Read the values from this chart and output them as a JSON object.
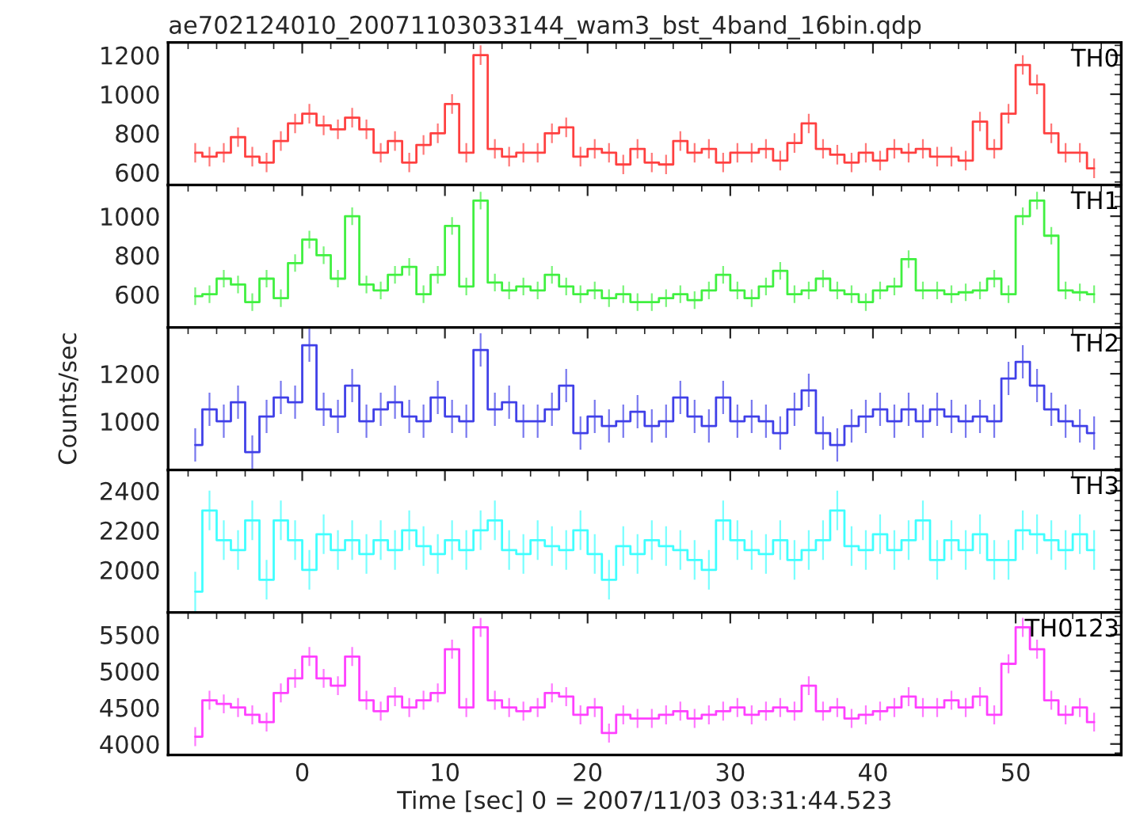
{
  "chart_data": [
    {
      "type": "step",
      "title": "ae702124010_20071103033144_wam3_bst_4band_16bin.qdp",
      "annotations": [
        "TH0"
      ],
      "tick_labels": "y",
      "grid": false,
      "xlim": [
        -9.4,
        57.4
      ],
      "xticks": [
        0,
        10,
        20,
        30,
        40,
        50
      ],
      "ylim": [
        535,
        1265
      ],
      "yticks": [
        600,
        800,
        1000,
        1200
      ],
      "x": [
        -7.5,
        -6.5,
        -5.5,
        -4.5,
        -3.5,
        -2.5,
        -1.5,
        -0.5,
        0.5,
        1.5,
        2.5,
        3.5,
        4.5,
        5.5,
        6.5,
        7.5,
        8.5,
        9.5,
        10.5,
        11.5,
        12.5,
        13.5,
        14.5,
        15.5,
        16.5,
        17.5,
        18.5,
        19.5,
        20.5,
        21.5,
        22.5,
        23.5,
        24.5,
        25.5,
        26.5,
        27.5,
        28.5,
        29.5,
        30.5,
        31.5,
        32.5,
        33.5,
        34.5,
        35.5,
        36.5,
        37.5,
        38.5,
        39.5,
        40.5,
        41.5,
        42.5,
        43.5,
        44.5,
        45.5,
        46.5,
        47.5,
        48.5,
        49.5,
        50.5,
        51.5,
        52.5,
        53.5,
        54.5,
        55.5
      ],
      "series": [
        {
          "color": "#ff4040",
          "values": [
            700,
            680,
            700,
            780,
            680,
            650,
            760,
            850,
            900,
            840,
            820,
            880,
            820,
            700,
            760,
            650,
            740,
            800,
            950,
            700,
            1200,
            720,
            680,
            700,
            700,
            800,
            830,
            680,
            720,
            700,
            640,
            720,
            650,
            640,
            760,
            700,
            720,
            650,
            700,
            700,
            720,
            660,
            750,
            850,
            720,
            690,
            650,
            700,
            660,
            720,
            700,
            720,
            680,
            680,
            660,
            860,
            720,
            900,
            1150,
            1050,
            800,
            700,
            700,
            620
          ],
          "errors": [
            50,
            50,
            50,
            50,
            50,
            50,
            50,
            50,
            50,
            50,
            50,
            50,
            50,
            50,
            50,
            50,
            50,
            50,
            50,
            50,
            50,
            50,
            50,
            50,
            50,
            50,
            50,
            50,
            50,
            50,
            50,
            50,
            50,
            50,
            50,
            50,
            50,
            50,
            50,
            50,
            50,
            50,
            50,
            50,
            50,
            50,
            50,
            50,
            50,
            50,
            50,
            50,
            50,
            50,
            50,
            50,
            50,
            50,
            50,
            50,
            50,
            50,
            50,
            50
          ]
        }
      ]
    },
    {
      "type": "step",
      "annotations": [
        "TH1"
      ],
      "tick_labels": "y",
      "grid": false,
      "xlim": [
        -9.4,
        57.4
      ],
      "xticks": [
        0,
        10,
        20,
        30,
        40,
        50
      ],
      "ylim": [
        430,
        1160
      ],
      "yticks": [
        600,
        800,
        1000
      ],
      "x": [
        -7.5,
        -6.5,
        -5.5,
        -4.5,
        -3.5,
        -2.5,
        -1.5,
        -0.5,
        0.5,
        1.5,
        2.5,
        3.5,
        4.5,
        5.5,
        6.5,
        7.5,
        8.5,
        9.5,
        10.5,
        11.5,
        12.5,
        13.5,
        14.5,
        15.5,
        16.5,
        17.5,
        18.5,
        19.5,
        20.5,
        21.5,
        22.5,
        23.5,
        24.5,
        25.5,
        26.5,
        27.5,
        28.5,
        29.5,
        30.5,
        31.5,
        32.5,
        33.5,
        34.5,
        35.5,
        36.5,
        37.5,
        38.5,
        39.5,
        40.5,
        41.5,
        42.5,
        43.5,
        44.5,
        45.5,
        46.5,
        47.5,
        48.5,
        49.5,
        50.5,
        51.5,
        52.5,
        53.5,
        54.5,
        55.5
      ],
      "series": [
        {
          "color": "#40f040",
          "values": [
            590,
            600,
            680,
            650,
            560,
            680,
            580,
            760,
            880,
            800,
            680,
            1000,
            650,
            620,
            700,
            740,
            600,
            700,
            950,
            640,
            1080,
            660,
            620,
            640,
            620,
            700,
            640,
            600,
            620,
            580,
            600,
            560,
            560,
            580,
            600,
            570,
            620,
            700,
            620,
            580,
            640,
            720,
            600,
            620,
            680,
            620,
            600,
            560,
            620,
            640,
            780,
            620,
            620,
            600,
            610,
            620,
            680,
            600,
            1000,
            1080,
            900,
            620,
            610,
            600
          ],
          "errors": [
            45,
            45,
            45,
            45,
            45,
            45,
            45,
            45,
            45,
            45,
            45,
            45,
            45,
            45,
            45,
            45,
            45,
            45,
            45,
            45,
            45,
            45,
            45,
            45,
            45,
            45,
            45,
            45,
            45,
            45,
            45,
            45,
            45,
            45,
            45,
            45,
            45,
            45,
            45,
            45,
            45,
            45,
            45,
            45,
            45,
            45,
            45,
            45,
            45,
            45,
            45,
            45,
            45,
            45,
            45,
            45,
            45,
            45,
            45,
            45,
            45,
            45,
            45,
            45
          ]
        }
      ]
    },
    {
      "type": "step",
      "annotations": [
        "TH2"
      ],
      "ylabel": "Counts/sec",
      "tick_labels": "y",
      "grid": false,
      "xlim": [
        -9.4,
        57.4
      ],
      "xticks": [
        0,
        10,
        20,
        30,
        40,
        50
      ],
      "ylim": [
        795,
        1395
      ],
      "yticks": [
        1000,
        1200
      ],
      "x": [
        -7.5,
        -6.5,
        -5.5,
        -4.5,
        -3.5,
        -2.5,
        -1.5,
        -0.5,
        0.5,
        1.5,
        2.5,
        3.5,
        4.5,
        5.5,
        6.5,
        7.5,
        8.5,
        9.5,
        10.5,
        11.5,
        12.5,
        13.5,
        14.5,
        15.5,
        16.5,
        17.5,
        18.5,
        19.5,
        20.5,
        21.5,
        22.5,
        23.5,
        24.5,
        25.5,
        26.5,
        27.5,
        28.5,
        29.5,
        30.5,
        31.5,
        32.5,
        33.5,
        34.5,
        35.5,
        36.5,
        37.5,
        38.5,
        39.5,
        40.5,
        41.5,
        42.5,
        43.5,
        44.5,
        45.5,
        46.5,
        47.5,
        48.5,
        49.5,
        50.5,
        51.5,
        52.5,
        53.5,
        54.5,
        55.5
      ],
      "series": [
        {
          "color": "#4040e8",
          "values": [
            900,
            1050,
            1000,
            1080,
            870,
            1020,
            1100,
            1080,
            1320,
            1050,
            1020,
            1150,
            1000,
            1050,
            1080,
            1020,
            1000,
            1100,
            1020,
            1000,
            1300,
            1050,
            1080,
            1000,
            1000,
            1050,
            1150,
            950,
            1020,
            980,
            1000,
            1040,
            980,
            1000,
            1100,
            1020,
            980,
            1100,
            1000,
            1020,
            1000,
            950,
            1050,
            1130,
            950,
            900,
            980,
            1020,
            1050,
            1000,
            1050,
            1000,
            1050,
            1020,
            1000,
            1020,
            1000,
            1180,
            1250,
            1150,
            1050,
            1000,
            980,
            950
          ],
          "errors": [
            70,
            70,
            70,
            70,
            70,
            70,
            70,
            70,
            70,
            70,
            70,
            70,
            70,
            70,
            70,
            70,
            70,
            70,
            70,
            70,
            70,
            70,
            70,
            70,
            70,
            70,
            70,
            70,
            70,
            70,
            70,
            70,
            70,
            70,
            70,
            70,
            70,
            70,
            70,
            70,
            70,
            70,
            70,
            70,
            70,
            70,
            70,
            70,
            70,
            70,
            70,
            70,
            70,
            70,
            70,
            70,
            70,
            70,
            70,
            70,
            70,
            70,
            70,
            70
          ]
        }
      ]
    },
    {
      "type": "step",
      "annotations": [
        "TH3"
      ],
      "tick_labels": "y",
      "grid": false,
      "xlim": [
        -9.4,
        57.4
      ],
      "xticks": [
        0,
        10,
        20,
        30,
        40,
        50
      ],
      "ylim": [
        1785,
        2505
      ],
      "yticks": [
        2000,
        2200,
        2400
      ],
      "x": [
        -7.5,
        -6.5,
        -5.5,
        -4.5,
        -3.5,
        -2.5,
        -1.5,
        -0.5,
        0.5,
        1.5,
        2.5,
        3.5,
        4.5,
        5.5,
        6.5,
        7.5,
        8.5,
        9.5,
        10.5,
        11.5,
        12.5,
        13.5,
        14.5,
        15.5,
        16.5,
        17.5,
        18.5,
        19.5,
        20.5,
        21.5,
        22.5,
        23.5,
        24.5,
        25.5,
        26.5,
        27.5,
        28.5,
        29.5,
        30.5,
        31.5,
        32.5,
        33.5,
        34.5,
        35.5,
        36.5,
        37.5,
        38.5,
        39.5,
        40.5,
        41.5,
        42.5,
        43.5,
        44.5,
        45.5,
        46.5,
        47.5,
        48.5,
        49.5,
        50.5,
        51.5,
        52.5,
        53.5,
        54.5,
        55.5
      ],
      "series": [
        {
          "color": "#40ffff",
          "values": [
            1890,
            2300,
            2150,
            2100,
            2250,
            1950,
            2250,
            2150,
            2000,
            2180,
            2100,
            2150,
            2080,
            2150,
            2100,
            2200,
            2120,
            2080,
            2150,
            2100,
            2200,
            2250,
            2100,
            2080,
            2150,
            2120,
            2100,
            2200,
            2080,
            1950,
            2120,
            2080,
            2150,
            2120,
            2100,
            2050,
            2000,
            2250,
            2150,
            2100,
            2080,
            2150,
            2050,
            2100,
            2150,
            2300,
            2120,
            2100,
            2180,
            2100,
            2150,
            2250,
            2050,
            2150,
            2100,
            2180,
            2050,
            2050,
            2200,
            2180,
            2150,
            2100,
            2180,
            2100
          ],
          "errors": [
            100,
            100,
            100,
            100,
            100,
            100,
            100,
            100,
            100,
            100,
            100,
            100,
            100,
            100,
            100,
            100,
            100,
            100,
            100,
            100,
            100,
            100,
            100,
            100,
            100,
            100,
            100,
            100,
            100,
            100,
            100,
            100,
            100,
            100,
            100,
            100,
            100,
            100,
            100,
            100,
            100,
            100,
            100,
            100,
            100,
            100,
            100,
            100,
            100,
            100,
            100,
            100,
            100,
            100,
            100,
            100,
            100,
            100,
            100,
            100,
            100,
            100,
            100,
            100
          ]
        }
      ]
    },
    {
      "type": "step",
      "annotations": [
        "TH0123"
      ],
      "xlabel": "Time [sec] 0 = 2007/11/03 03:31:44.523",
      "grid": false,
      "xlim": [
        -9.4,
        57.4
      ],
      "xticks": [
        0,
        10,
        20,
        30,
        40,
        50
      ],
      "ylim": [
        3850,
        5805
      ],
      "yticks": [
        4000,
        4500,
        5000,
        5500
      ],
      "x": [
        -7.5,
        -6.5,
        -5.5,
        -4.5,
        -3.5,
        -2.5,
        -1.5,
        -0.5,
        0.5,
        1.5,
        2.5,
        3.5,
        4.5,
        5.5,
        6.5,
        7.5,
        8.5,
        9.5,
        10.5,
        11.5,
        12.5,
        13.5,
        14.5,
        15.5,
        16.5,
        17.5,
        18.5,
        19.5,
        20.5,
        21.5,
        22.5,
        23.5,
        24.5,
        25.5,
        26.5,
        27.5,
        28.5,
        29.5,
        30.5,
        31.5,
        32.5,
        33.5,
        34.5,
        35.5,
        36.5,
        37.5,
        38.5,
        39.5,
        40.5,
        41.5,
        42.5,
        43.5,
        44.5,
        45.5,
        46.5,
        47.5,
        48.5,
        49.5,
        50.5,
        51.5,
        52.5,
        53.5,
        54.5,
        55.5
      ],
      "series": [
        {
          "color": "#ff40ff",
          "values": [
            4100,
            4600,
            4550,
            4500,
            4400,
            4300,
            4700,
            4900,
            5200,
            4900,
            4800,
            5200,
            4600,
            4450,
            4650,
            4500,
            4600,
            4700,
            5300,
            4500,
            5600,
            4600,
            4500,
            4450,
            4500,
            4700,
            4650,
            4400,
            4500,
            4150,
            4400,
            4350,
            4350,
            4400,
            4450,
            4350,
            4400,
            4450,
            4500,
            4400,
            4450,
            4500,
            4450,
            4800,
            4450,
            4500,
            4350,
            4400,
            4450,
            4500,
            4650,
            4500,
            4500,
            4600,
            4500,
            4650,
            4400,
            5100,
            5600,
            5300,
            4600,
            4400,
            4500,
            4300
          ],
          "errors": [
            130,
            130,
            130,
            130,
            130,
            130,
            130,
            130,
            130,
            130,
            130,
            130,
            130,
            130,
            130,
            130,
            130,
            130,
            130,
            130,
            130,
            130,
            130,
            130,
            130,
            130,
            130,
            130,
            130,
            130,
            130,
            130,
            130,
            130,
            130,
            130,
            130,
            130,
            130,
            130,
            130,
            130,
            130,
            130,
            130,
            130,
            130,
            130,
            130,
            130,
            130,
            130,
            130,
            130,
            130,
            130,
            130,
            130,
            130,
            130,
            130,
            130,
            130,
            130
          ]
        }
      ]
    }
  ]
}
